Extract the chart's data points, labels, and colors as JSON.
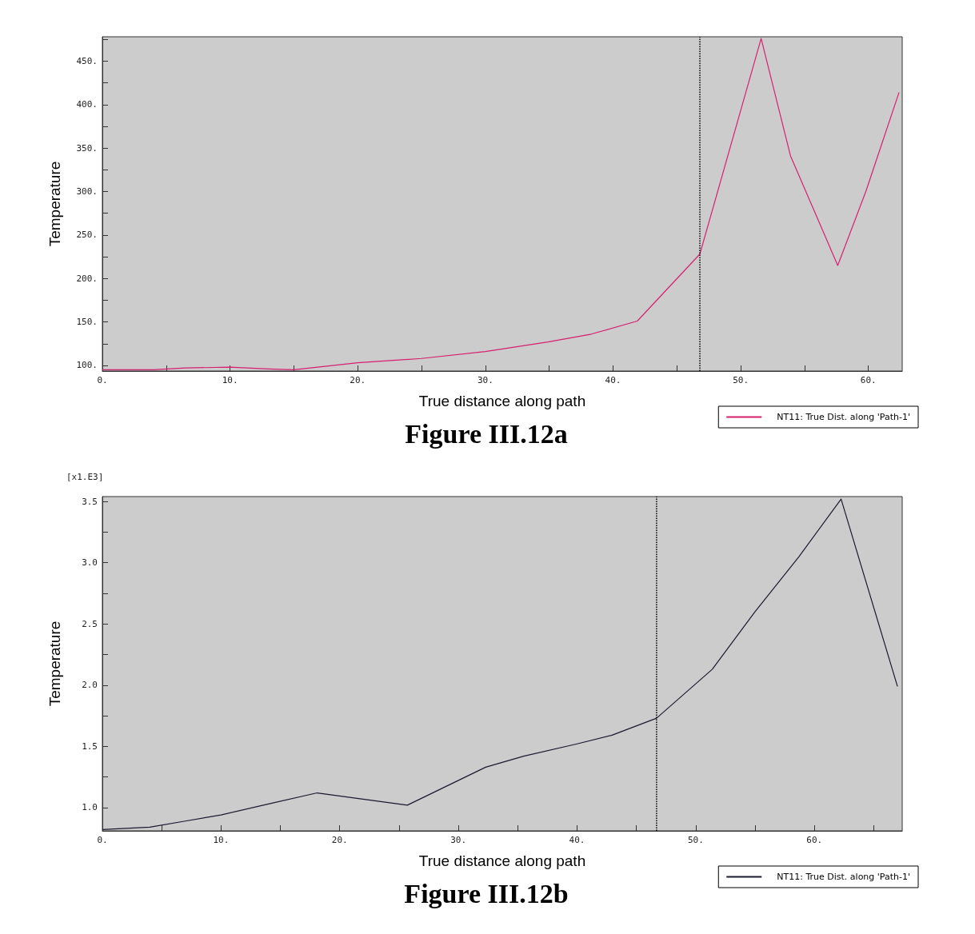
{
  "chart_data": [
    {
      "type": "line",
      "title": "Figure III.12a",
      "xlabel": "True distance along path",
      "ylabel": "Temperature",
      "xlim": [
        0,
        62.65
      ],
      "ylim": [
        93.5,
        478
      ],
      "xticks": [
        {
          "value": 0,
          "label": "0."
        },
        {
          "value": 5,
          "label": null
        },
        {
          "value": 10,
          "label": "10."
        },
        {
          "value": 15,
          "label": null
        },
        {
          "value": 20,
          "label": "20."
        },
        {
          "value": 25,
          "label": null
        },
        {
          "value": 30,
          "label": "30."
        },
        {
          "value": 35,
          "label": null
        },
        {
          "value": 40,
          "label": "40."
        },
        {
          "value": 45,
          "label": null
        },
        {
          "value": 50,
          "label": "50."
        },
        {
          "value": 55,
          "label": null
        },
        {
          "value": 60,
          "label": "60."
        }
      ],
      "yticks": [
        {
          "value": 100,
          "label": "100."
        },
        {
          "value": 125,
          "label": null
        },
        {
          "value": 150,
          "label": "150."
        },
        {
          "value": 175,
          "label": null
        },
        {
          "value": 200,
          "label": "200."
        },
        {
          "value": 225,
          "label": null
        },
        {
          "value": 250,
          "label": "250."
        },
        {
          "value": 275,
          "label": null
        },
        {
          "value": 300,
          "label": "300."
        },
        {
          "value": 325,
          "label": null
        },
        {
          "value": 350,
          "label": "350."
        },
        {
          "value": 375,
          "label": null
        },
        {
          "value": 400,
          "label": "400."
        },
        {
          "value": 425,
          "label": null
        },
        {
          "value": 450,
          "label": "450."
        },
        {
          "value": 475,
          "label": null
        }
      ],
      "series": [
        {
          "name": "NT11: True Dist. along 'Path-1'",
          "color": "#d6206e",
          "x": [
            0,
            4,
            6.5,
            10,
            13,
            15,
            20,
            25,
            30,
            34.9,
            38.3,
            41.9,
            46.8,
            51.6,
            53.9,
            57.6,
            59.8,
            62.4
          ],
          "values": [
            95,
            95,
            97,
            98,
            96,
            95,
            103,
            108,
            116,
            127,
            136,
            151,
            228,
            476,
            341,
            215,
            300,
            414
          ]
        }
      ],
      "ref_lines": [
        {
          "axis": "x",
          "value": 46.8,
          "color": "#000000",
          "line_style": "dotted"
        }
      ],
      "marker": "none",
      "grid": false,
      "legend": "bottom right"
    },
    {
      "type": "line",
      "title": "Figure III.12b",
      "xlabel": "True distance along path",
      "ylabel": "Temperature",
      "annotations": [
        "[x1.E3]"
      ],
      "xlim": [
        0,
        67.4
      ],
      "ylim": [
        0.81,
        3.54
      ],
      "xticks": [
        {
          "value": 0,
          "label": "0."
        },
        {
          "value": 5,
          "label": null
        },
        {
          "value": 10,
          "label": "10."
        },
        {
          "value": 15,
          "label": null
        },
        {
          "value": 20,
          "label": "20."
        },
        {
          "value": 25,
          "label": null
        },
        {
          "value": 30,
          "label": "30."
        },
        {
          "value": 35,
          "label": null
        },
        {
          "value": 40,
          "label": "40."
        },
        {
          "value": 45,
          "label": null
        },
        {
          "value": 50,
          "label": "50."
        },
        {
          "value": 55,
          "label": null
        },
        {
          "value": 60,
          "label": "60."
        },
        {
          "value": 65,
          "label": null
        }
      ],
      "yticks": [
        {
          "value": 1,
          "label": "1.0"
        },
        {
          "value": 1.25,
          "label": null
        },
        {
          "value": 1.5,
          "label": "1.5"
        },
        {
          "value": 1.75,
          "label": null
        },
        {
          "value": 2,
          "label": "2.0"
        },
        {
          "value": 2.25,
          "label": null
        },
        {
          "value": 2.5,
          "label": "2.5"
        },
        {
          "value": 2.75,
          "label": null
        },
        {
          "value": 3,
          "label": "3.0"
        },
        {
          "value": 3.25,
          "label": null
        },
        {
          "value": 3.5,
          "label": "3.5"
        }
      ],
      "series": [
        {
          "name": "NT11: True Dist. along 'Path-1'",
          "color": "#1a1a2e",
          "x": [
            0,
            4,
            7,
            10,
            14,
            18.1,
            25.7,
            32.3,
            35.5,
            40,
            42.9,
            46.7,
            51.4,
            55,
            58.7,
            62.25,
            67
          ],
          "values": [
            0.82,
            0.84,
            0.89,
            0.94,
            1.03,
            1.12,
            1.02,
            1.33,
            1.42,
            1.52,
            1.59,
            1.73,
            2.13,
            2.6,
            3.05,
            3.52,
            1.99
          ]
        }
      ],
      "ref_lines": [
        {
          "axis": "x",
          "value": 46.7,
          "color": "#000000",
          "line_style": "dotted"
        }
      ],
      "marker": "none",
      "grid": false,
      "legend": "bottom right"
    }
  ]
}
